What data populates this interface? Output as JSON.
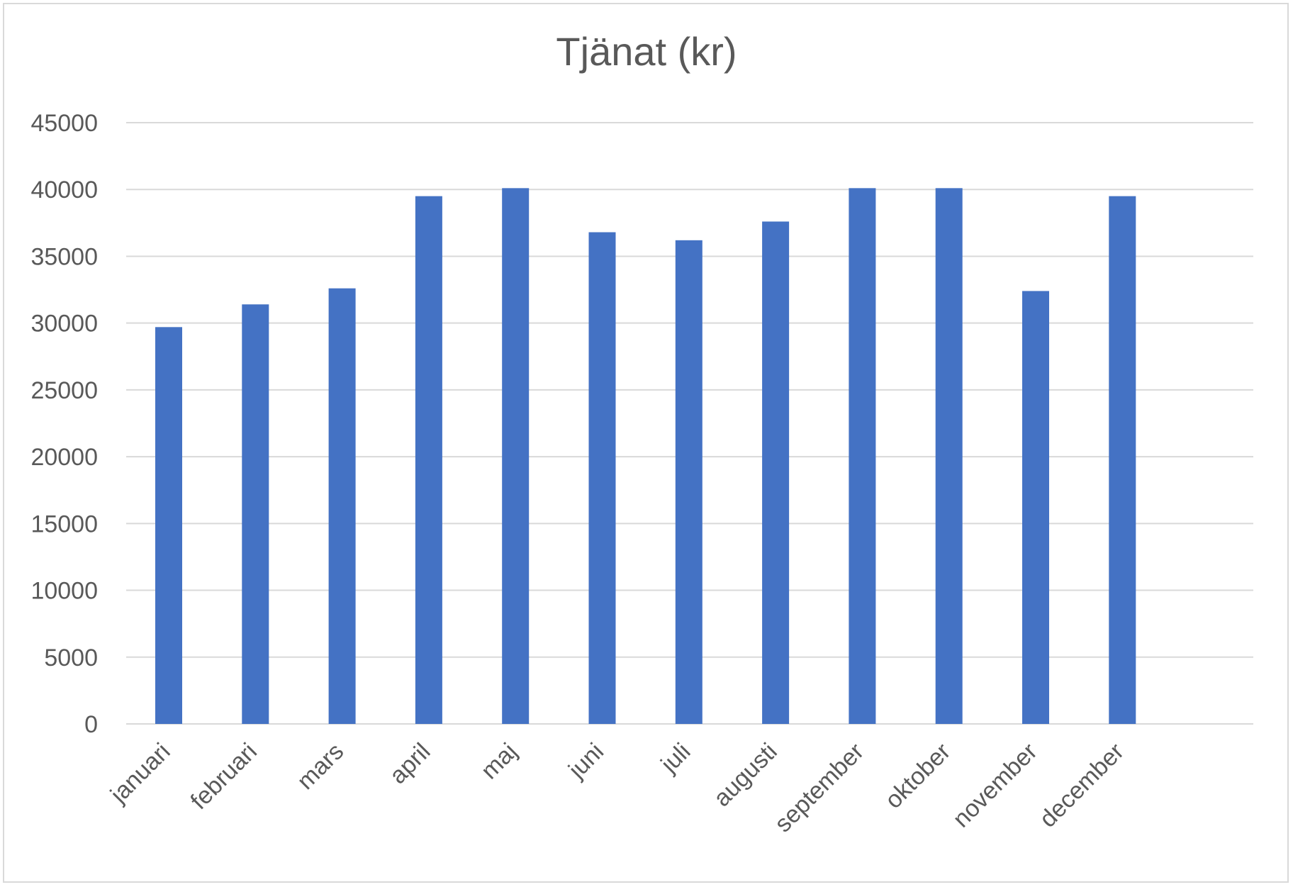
{
  "chart_data": {
    "type": "bar",
    "title": "Tjänat (kr)",
    "xlabel": "",
    "ylabel": "",
    "categories": [
      "januari",
      "februari",
      "mars",
      "april",
      "maj",
      "juni",
      "juli",
      "augusti",
      "september",
      "oktober",
      "november",
      "december"
    ],
    "values": [
      29700,
      31400,
      32600,
      39500,
      40100,
      36800,
      36200,
      37600,
      40100,
      40100,
      32400,
      39500
    ],
    "ylim": [
      0,
      45000
    ],
    "yticks": [
      "0",
      "5000",
      "10000",
      "15000",
      "20000",
      "25000",
      "30000",
      "35000",
      "40000",
      "45000"
    ],
    "grid": true,
    "legend": "none",
    "colors": {
      "bar": "#4472C4",
      "grid": "#d9d9d9",
      "text": "#595959"
    }
  }
}
